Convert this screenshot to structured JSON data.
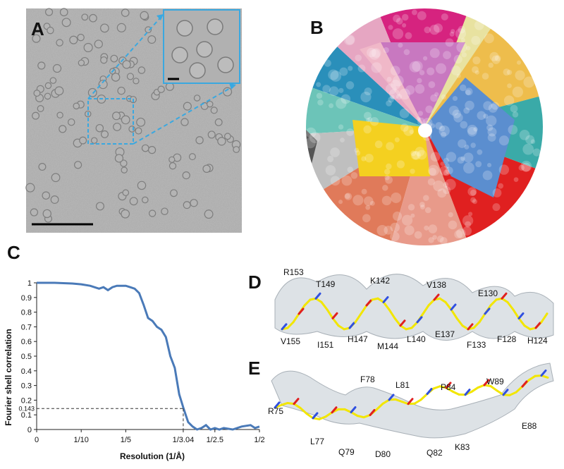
{
  "panels": {
    "a": {
      "label": "A"
    },
    "b": {
      "label": "B"
    },
    "c": {
      "label": "C"
    },
    "d": {
      "label": "D",
      "residues_top": [
        "R153",
        "T149",
        "K142",
        "V138",
        "E130"
      ],
      "residues_bottom": [
        "V155",
        "I151",
        "H147",
        "M144",
        "L140",
        "E137",
        "F133",
        "F128",
        "H124"
      ]
    },
    "e": {
      "label": "E",
      "residues_top": [
        "F78",
        "L81",
        "P84",
        "W89"
      ],
      "residues_bottom": [
        "R75",
        "L77",
        "Q79",
        "D80",
        "Q82",
        "K83",
        "E88"
      ]
    }
  },
  "colors": {
    "fsc_line": "#4a7ab8",
    "inset_frame": "#3aa8e0",
    "stick_carbon": "#f2e600",
    "oxygen": "#e02020",
    "nitrogen": "#3050e0",
    "density": "#c8d0d8"
  },
  "chart_data": {
    "type": "line",
    "xlabel": "Resolution (1/Å)",
    "ylabel": "Fourier shell correlation",
    "xlim": [
      0,
      0.5
    ],
    "ylim": [
      0,
      1
    ],
    "yticks": [
      "0",
      "0.1",
      "0.2",
      "0.3",
      "0.4",
      "0.5",
      "0.6",
      "0.7",
      "0.8",
      "0.9",
      "1"
    ],
    "xticks": [
      {
        "label": "0",
        "value": 0
      },
      {
        "label": "1/10",
        "value": 0.1
      },
      {
        "label": "1/5",
        "value": 0.2
      },
      {
        "label": "1/3.04",
        "value": 0.329
      },
      {
        "label": "1/2.5",
        "value": 0.4
      },
      {
        "label": "1/2",
        "value": 0.5
      }
    ],
    "threshold": {
      "label": "0.143",
      "value": 0.143,
      "resolution": 0.329
    },
    "series": [
      {
        "x": [
          0,
          0.04,
          0.08,
          0.1,
          0.12,
          0.14,
          0.15,
          0.16,
          0.17,
          0.18,
          0.19,
          0.2,
          0.21,
          0.22,
          0.23,
          0.24,
          0.25,
          0.26,
          0.27,
          0.28,
          0.29,
          0.3,
          0.31,
          0.32,
          0.33,
          0.34,
          0.35,
          0.36,
          0.37,
          0.38,
          0.39,
          0.4,
          0.41,
          0.42,
          0.44,
          0.46,
          0.48,
          0.49,
          0.5
        ],
        "y": [
          1.0,
          1.0,
          0.995,
          0.99,
          0.98,
          0.96,
          0.97,
          0.95,
          0.97,
          0.98,
          0.98,
          0.98,
          0.97,
          0.96,
          0.93,
          0.85,
          0.76,
          0.74,
          0.7,
          0.68,
          0.63,
          0.5,
          0.42,
          0.24,
          0.14,
          0.05,
          0.02,
          0.0,
          0.01,
          0.03,
          0.0,
          0.01,
          0.0,
          0.01,
          0.0,
          0.02,
          0.03,
          0.01,
          0.02
        ]
      }
    ]
  }
}
